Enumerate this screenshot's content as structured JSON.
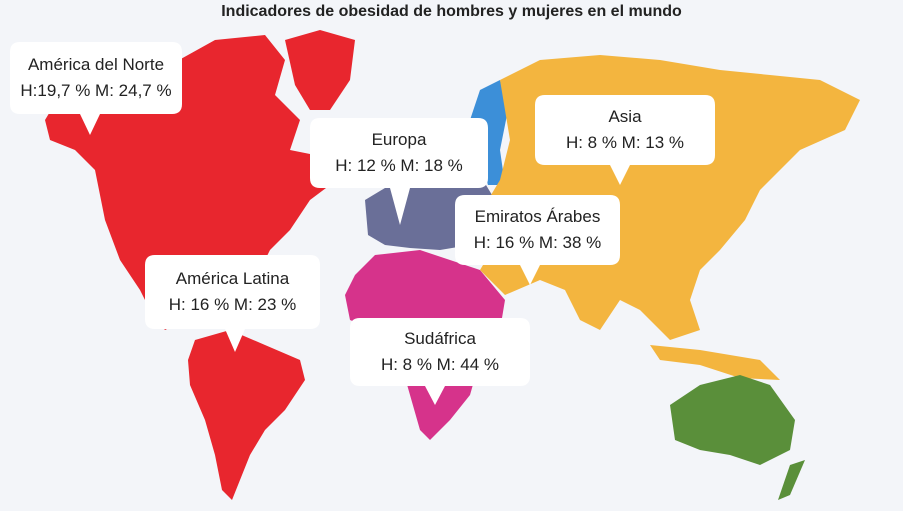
{
  "title": "Indicadores de obesidad de hombres y mujeres en el mundo",
  "regions": [
    {
      "name": "América del Norte",
      "stats": "H:19,7 % M: 24,7 %"
    },
    {
      "name": "Europa",
      "stats": "H: 12 % M: 18 %"
    },
    {
      "name": "Asia",
      "stats": "H: 8 % M: 13 %"
    },
    {
      "name": "Emiratos Árabes",
      "stats": "H: 16 % M: 38 %"
    },
    {
      "name": "América Latina",
      "stats": "H: 16 % M: 23 %"
    },
    {
      "name": "Sudáfrica",
      "stats": "H: 8 % M: 44 %"
    }
  ]
}
